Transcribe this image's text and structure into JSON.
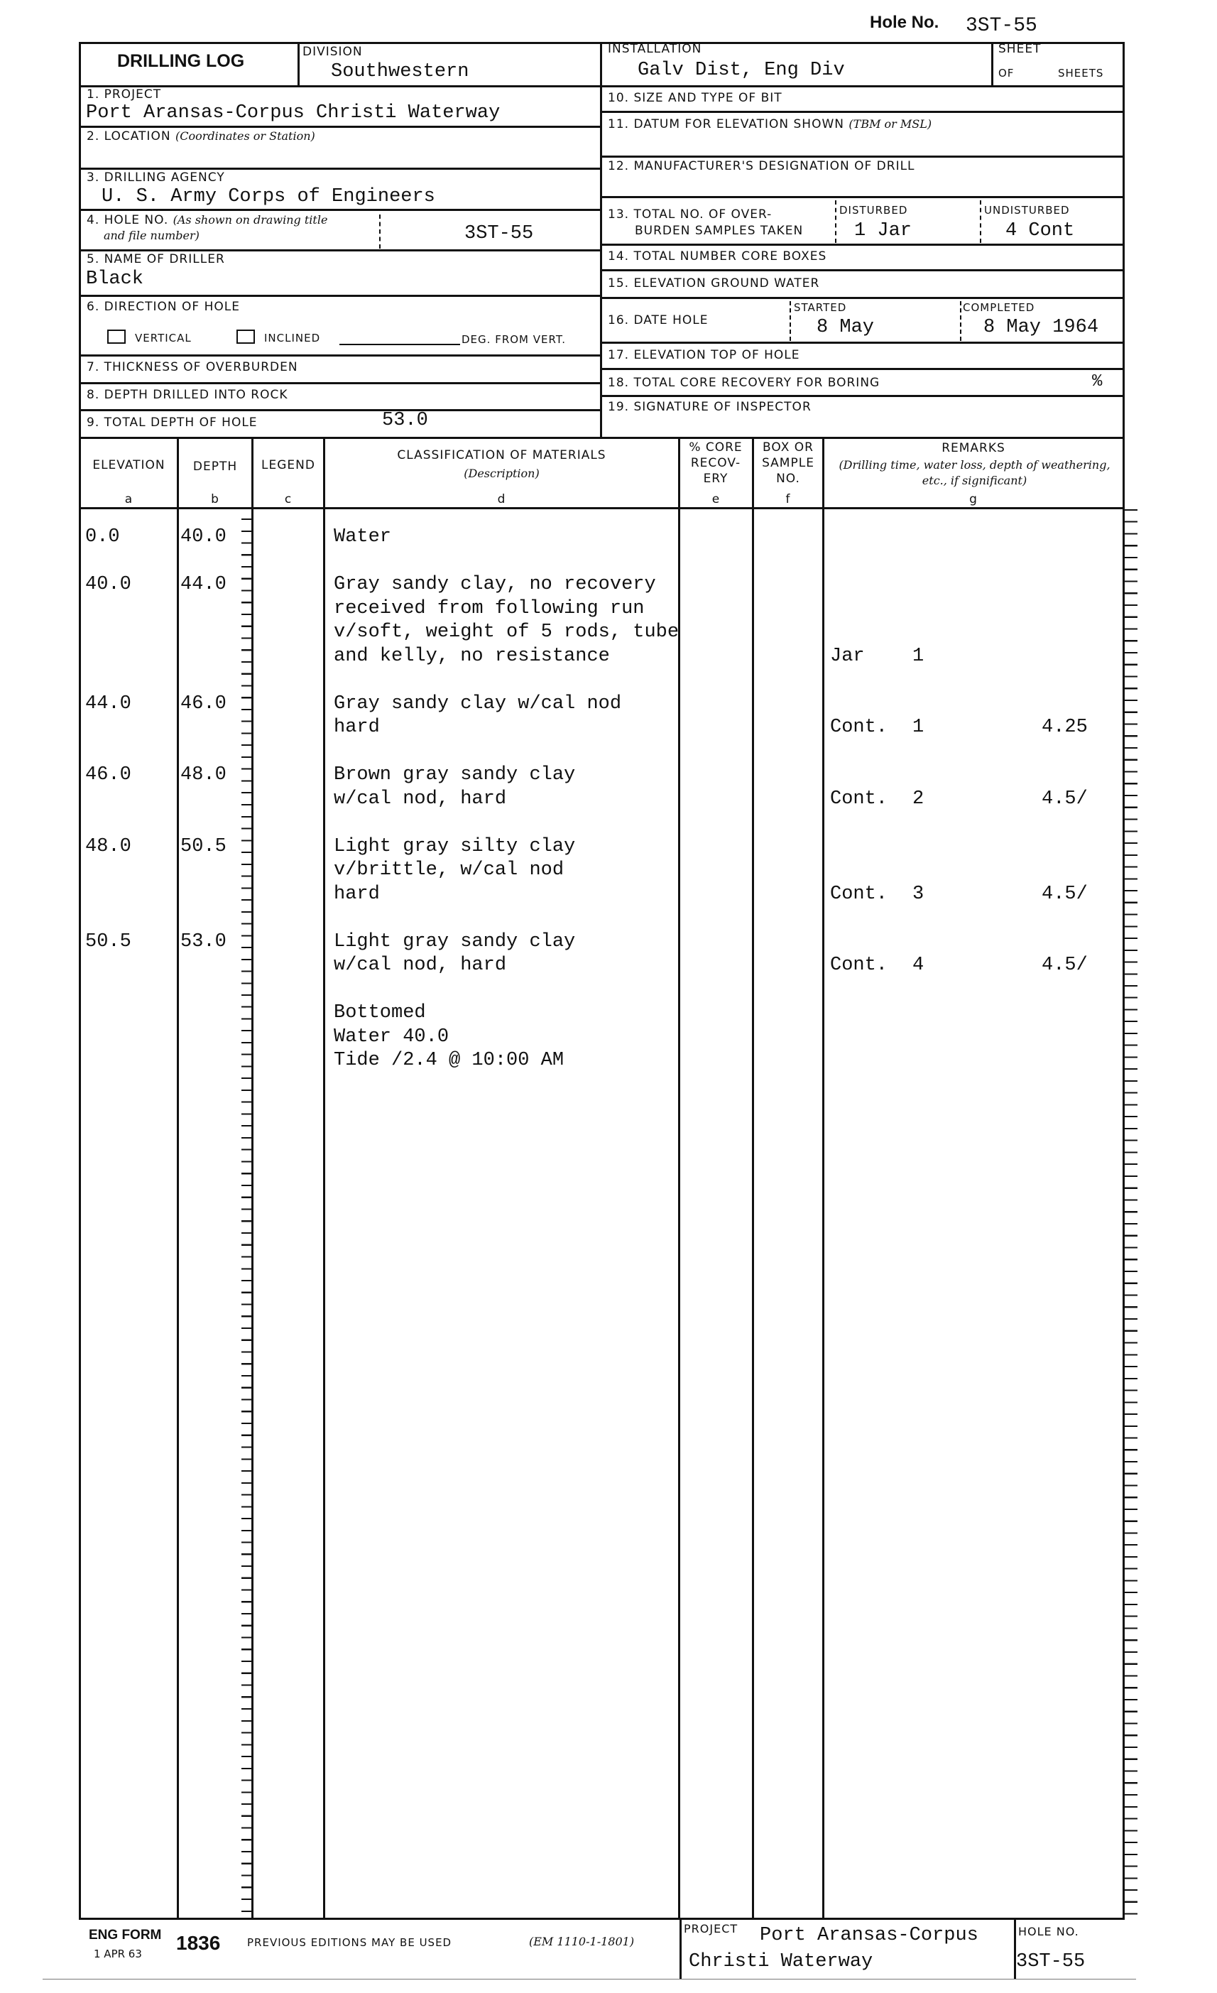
{
  "hole_no_label": "Hole No.",
  "hole_no_value": "3ST-55",
  "header": {
    "title": "DRILLING LOG",
    "division_label": "DIVISION",
    "division_value": "Southwestern",
    "installation_label": "INSTALLATION",
    "installation_value": "Galv Dist, Eng Div",
    "sheet_label": "SHEET",
    "of_label": "OF",
    "sheets_label": "SHEETS"
  },
  "fields": {
    "project_label": "1. PROJECT",
    "project_value": "Port Aransas-Corpus Christi Waterway",
    "location_label": "2. LOCATION",
    "location_note": "(Coordinates or Station)",
    "agency_label": "3. DRILLING AGENCY",
    "agency_value": "U. S. Army Corps of Engineers",
    "hole_label": "4. HOLE NO.",
    "hole_note1": "(As shown on drawing title",
    "hole_note2": "and file number)",
    "hole_value": "3ST-55",
    "driller_label": "5. NAME OF DRILLER",
    "driller_value": "Black",
    "direction_label": "6. DIRECTION OF HOLE",
    "vertical_label": "VERTICAL",
    "inclined_label": "INCLINED",
    "deg_label": "DEG. FROM VERT.",
    "overburden_label": "7. THICKNESS OF OVERBURDEN",
    "rock_label": "8. DEPTH DRILLED INTO ROCK",
    "total_depth_label": "9. TOTAL DEPTH OF HOLE",
    "total_depth_value": "53.0",
    "bit_label": "10. SIZE AND TYPE OF BIT",
    "datum_label": "11. DATUM FOR ELEVATION SHOWN",
    "datum_note": "(TBM or MSL)",
    "manufacturer_label": "12. MANUFACTURER'S DESIGNATION OF DRILL",
    "samples_label1": "13. TOTAL NO. OF OVER-",
    "samples_label2": "BURDEN SAMPLES TAKEN",
    "disturbed_label": "DISTURBED",
    "disturbed_value": "1 Jar",
    "undisturbed_label": "UNDISTURBED",
    "undisturbed_value": "4 Cont",
    "core_boxes_label": "14. TOTAL NUMBER CORE BOXES",
    "ground_water_label": "15. ELEVATION GROUND WATER",
    "date_label": "16. DATE HOLE",
    "started_label": "STARTED",
    "started_value": "8 May",
    "completed_label": "COMPLETED",
    "completed_value": "8 May 1964",
    "top_label": "17. ELEVATION TOP OF HOLE",
    "recovery_label": "18. TOTAL CORE RECOVERY FOR BORING",
    "recovery_unit": "%",
    "signature_label": "19. SIGNATURE OF INSPECTOR"
  },
  "table": {
    "columns": [
      {
        "title": "ELEVATION",
        "letter": "a"
      },
      {
        "title": "DEPTH",
        "letter": "b"
      },
      {
        "title": "LEGEND",
        "letter": "c"
      },
      {
        "title": "CLASSIFICATION OF MATERIALS",
        "note": "(Description)",
        "letter": "d"
      },
      {
        "title": "% CORE RECOV-ERY",
        "letter": "e"
      },
      {
        "title": "BOX OR SAMPLE NO.",
        "letter": "f"
      },
      {
        "title": "REMARKS",
        "note": "(Drilling time, water loss, depth of weathering, etc., if significant)",
        "letter": "g"
      }
    ],
    "lines": [
      {
        "elevation": "0.0",
        "depth": "40.0",
        "description": "Water"
      },
      {},
      {
        "elevation": "40.0",
        "depth": "44.0",
        "description": "Gray sandy clay, no recovery"
      },
      {
        "description": "received from following run"
      },
      {
        "description": "v/soft, weight of 5 rods, tube"
      },
      {
        "description": "and kelly, no resistance",
        "remark_box": "Jar",
        "remark_no": "1"
      },
      {},
      {
        "elevation": "44.0",
        "depth": "46.0",
        "description": "Gray sandy clay w/cal nod"
      },
      {
        "description": "hard",
        "remark_box": "Cont.",
        "remark_no": "1",
        "remark_value": "4.25"
      },
      {},
      {
        "elevation": "46.0",
        "depth": "48.0",
        "description": "Brown gray sandy clay"
      },
      {
        "description": "w/cal nod, hard",
        "remark_box": "Cont.",
        "remark_no": "2",
        "remark_value": "4.5/"
      },
      {},
      {
        "elevation": "48.0",
        "depth": "50.5",
        "description": "Light gray silty clay"
      },
      {
        "description": "v/brittle, w/cal nod"
      },
      {
        "description": "hard",
        "remark_box": "Cont.",
        "remark_no": "3",
        "remark_value": "4.5/"
      },
      {},
      {
        "elevation": "50.5",
        "depth": "53.0",
        "description": "Light gray sandy clay"
      },
      {
        "description": "w/cal nod, hard",
        "remark_box": "Cont.",
        "remark_no": "4",
        "remark_value": "4.5/"
      },
      {},
      {
        "description": "Bottomed"
      },
      {
        "description": "Water 40.0"
      },
      {
        "description": "Tide /2.4 @ 10:00 AM"
      }
    ]
  },
  "footer": {
    "form_label": "ENG FORM",
    "form_date": "1 APR 63",
    "form_number": "1836",
    "previous": "PREVIOUS EDITIONS MAY BE USED",
    "em_ref": "(EM 1110-1-1801)",
    "project_label": "PROJECT",
    "project_line1": "Port Aransas-Corpus",
    "project_line2": "Christi Waterway",
    "hole_label": "HOLE NO.",
    "hole_value": "3ST-55"
  }
}
